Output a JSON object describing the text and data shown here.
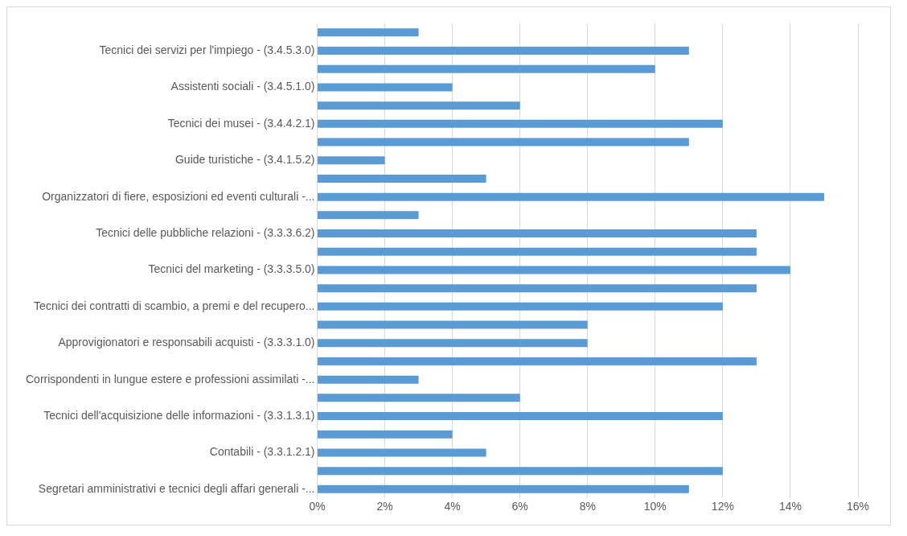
{
  "chart_data": {
    "type": "bar",
    "orientation": "horizontal",
    "categories": [
      null,
      "Tecnici dei servizi per l'impiego - (3.4.5.3.0)",
      null,
      "Assistenti sociali - (3.4.5.1.0)",
      null,
      "Tecnici dei musei - (3.4.4.2.1)",
      null,
      "Guide turistiche - (3.4.1.5.2)",
      null,
      "Organizzatori di fiere, esposizioni ed eventi culturali -...",
      null,
      "Tecnici delle pubbliche relazioni - (3.3.3.6.2)",
      null,
      "Tecnici del marketing - (3.3.3.5.0)",
      null,
      "Tecnici dei contratti di scambio, a premi e del recupero...",
      null,
      "Approvigionatori e responsabili acquisti - (3.3.3.1.0)",
      null,
      "Corrispondenti in lungue estere e professioni assimilati -...",
      null,
      "Tecnici dell'acquisizione delle informazioni - (3.3.1.3.1)",
      null,
      "Contabili - (3.3.1.2.1)",
      null,
      "Segretari amministrativi e tecnici degli affari generali -..."
    ],
    "values": [
      3,
      11,
      10,
      4,
      6,
      12,
      11,
      2,
      5,
      15,
      3,
      13,
      13,
      14,
      13,
      12,
      8,
      8,
      13,
      3,
      6,
      12,
      4,
      5,
      12,
      11
    ],
    "color": "#5b9bd5",
    "xlim": [
      0,
      16
    ],
    "xticks": [
      {
        "value": 0,
        "label": "0%"
      },
      {
        "value": 2,
        "label": "2%"
      },
      {
        "value": 4,
        "label": "4%"
      },
      {
        "value": 6,
        "label": "6%"
      },
      {
        "value": 8,
        "label": "8%"
      },
      {
        "value": 10,
        "label": "10%"
      },
      {
        "value": 12,
        "label": "12%"
      },
      {
        "value": 14,
        "label": "14%"
      },
      {
        "value": 16,
        "label": "16%"
      }
    ],
    "grid": "x",
    "legend": false
  }
}
